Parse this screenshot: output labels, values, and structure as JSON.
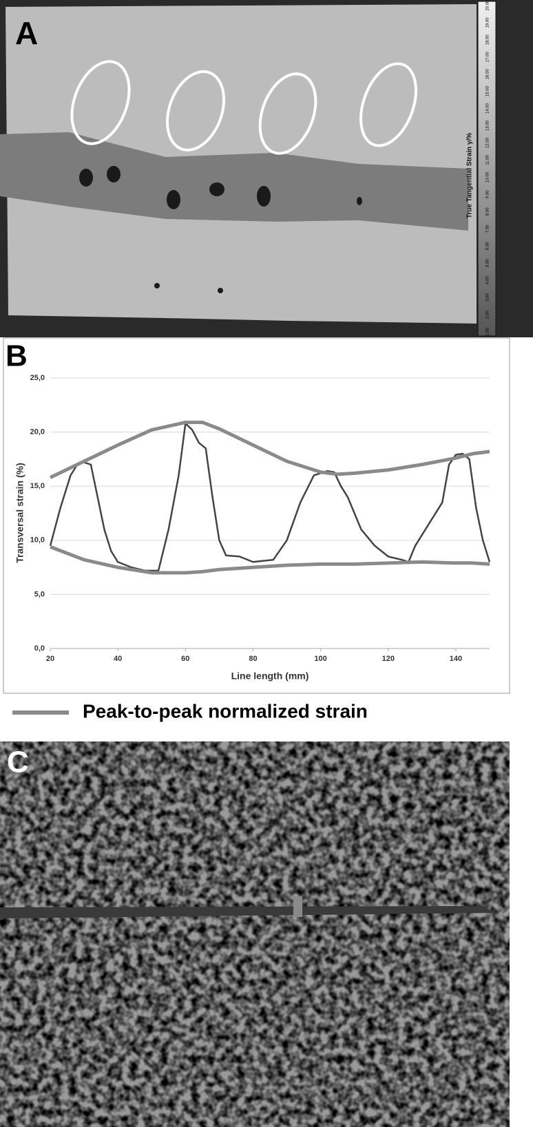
{
  "panel_a": {
    "label": "A",
    "colorbar_label": "True Tangential Strain γ/%",
    "colorbar_ticks": [
      "20.00",
      "19.00",
      "18.00",
      "17.00",
      "16.00",
      "15.00",
      "14.00",
      "13.00",
      "12.00",
      "11.00",
      "10.00",
      "9.00",
      "8.00",
      "7.00",
      "6.00",
      "5.00",
      "4.00",
      "3.00",
      "2.00",
      "1.00"
    ]
  },
  "panel_b": {
    "label": "B"
  },
  "panel_c": {
    "label": "C"
  },
  "chart_data": {
    "type": "line",
    "x_label": "Line length (mm)",
    "y_label": "Transversal strain (%)",
    "xlim": [
      20,
      150
    ],
    "xticks": [
      20,
      40,
      60,
      80,
      100,
      120,
      140
    ],
    "ylim": [
      0,
      25
    ],
    "yticks": [
      {
        "value": 0,
        "label": "0,0"
      },
      {
        "value": 5,
        "label": "5,0"
      },
      {
        "value": 10,
        "label": "10,0"
      },
      {
        "value": 15,
        "label": "15,0"
      },
      {
        "value": 20,
        "label": "20,0"
      },
      {
        "value": 25,
        "label": "25,0"
      }
    ],
    "grid": true,
    "series": [
      {
        "color": "#444444",
        "width": 2.5,
        "x": [
          20,
          23,
          26,
          28,
          30,
          32,
          34,
          36,
          38,
          40,
          44,
          48,
          52,
          55,
          58,
          60,
          62,
          64,
          66,
          68,
          70,
          72,
          76,
          80,
          86,
          90,
          94,
          98,
          102,
          104,
          106,
          108,
          112,
          116,
          120,
          124,
          126,
          128,
          132,
          136,
          138,
          140,
          142,
          144,
          146,
          148,
          150
        ],
        "values": [
          9.5,
          13,
          16,
          17,
          17.2,
          17,
          14,
          11,
          9,
          8,
          7.5,
          7.2,
          7.2,
          11,
          16,
          20.8,
          20.2,
          19,
          18.5,
          14,
          10,
          8.6,
          8.5,
          8,
          8.2,
          10,
          13.5,
          16,
          16.4,
          16.3,
          15,
          14,
          11,
          9.5,
          8.5,
          8.2,
          8,
          9.5,
          11.5,
          13.5,
          17,
          17.9,
          18,
          17.5,
          13,
          10,
          8
        ]
      },
      {
        "name": "Peak-to-peak normalized strain",
        "color": "#8a8a8a",
        "width": 5,
        "x": [
          20,
          30,
          40,
          50,
          60,
          65,
          70,
          80,
          90,
          100,
          105,
          110,
          120,
          130,
          140,
          145,
          150
        ],
        "values": [
          15.8,
          17.3,
          18.8,
          20.2,
          20.9,
          20.9,
          20.3,
          18.8,
          17.3,
          16.3,
          16.1,
          16.2,
          16.5,
          17,
          17.6,
          18,
          18.2
        ]
      },
      {
        "color": "#8a8a8a",
        "width": 5,
        "x": [
          20,
          30,
          40,
          50,
          60,
          65,
          70,
          80,
          90,
          100,
          105,
          110,
          120,
          130,
          140,
          145,
          150
        ],
        "values": [
          9.4,
          8.2,
          7.5,
          7,
          7,
          7.1,
          7.3,
          7.5,
          7.7,
          7.8,
          7.8,
          7.8,
          7.9,
          8,
          7.9,
          7.9,
          7.8
        ]
      }
    ]
  }
}
